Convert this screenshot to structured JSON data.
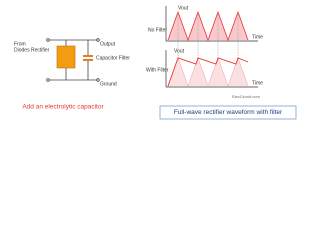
{
  "circuit": {
    "input_label": [
      "From",
      "Diodes Rectifier"
    ],
    "output_label": "Output",
    "capacitor_label": "Capacitor Filter",
    "ground_label": "Ground",
    "caption": "Add an electrolytic capacitor"
  },
  "waveforms": {
    "top": {
      "axis_label": "Vout",
      "label": "No Filter",
      "time_label": "Time"
    },
    "bottom": {
      "axis_label": "Vout",
      "label": "With Filter",
      "time_label": "Time"
    },
    "credit": "ElecCircuit.com",
    "caption": "Full-wave rectifier waveform with filter"
  }
}
